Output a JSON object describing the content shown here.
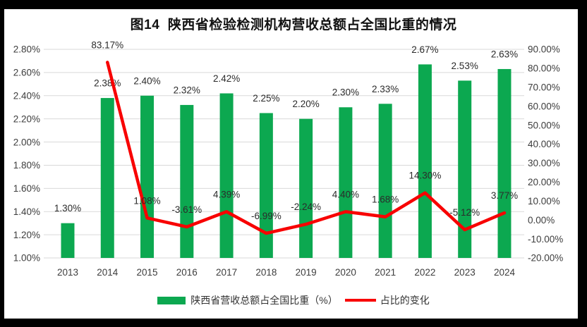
{
  "chart_data": {
    "type": "bar+line",
    "title": "图14  陕西省检验检测机构营收总额占全国比重的情况",
    "categories": [
      "2013",
      "2014",
      "2015",
      "2016",
      "2017",
      "2018",
      "2019",
      "2020",
      "2021",
      "2022",
      "2023",
      "2024"
    ],
    "series": [
      {
        "name": "陕西省营收总额占全国比重（%）",
        "type": "bar",
        "axis": "left",
        "color": "#0CA850",
        "values": [
          1.3,
          2.38,
          2.4,
          2.32,
          2.42,
          2.25,
          2.2,
          2.3,
          2.33,
          2.67,
          2.53,
          2.63
        ]
      },
      {
        "name": "占比的变化",
        "type": "line",
        "axis": "right",
        "color": "#F80000",
        "values": [
          null,
          83.17,
          1.08,
          -3.61,
          4.39,
          -6.99,
          -2.24,
          4.4,
          1.68,
          14.3,
          -5.12,
          3.77
        ]
      }
    ],
    "left_axis": {
      "min": 1.0,
      "max": 2.8,
      "step": 0.2,
      "tick_format": "0.00%"
    },
    "right_axis": {
      "min": -20.0,
      "max": 90.0,
      "step": 10.0,
      "tick_format": "0.00%"
    },
    "grid": true,
    "legend_position": "bottom",
    "colors": {
      "gridline": "#d9d9d9",
      "tick_text": "#3d3d3d",
      "data_label_text": "#2b2b2b",
      "frame": "#000000"
    }
  }
}
